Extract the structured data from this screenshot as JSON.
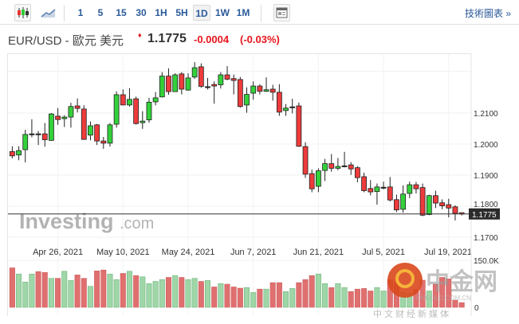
{
  "toolbar": {
    "chart_type_icons": [
      "candlestick-icon",
      "line-chart-icon"
    ],
    "intervals": [
      "1",
      "5",
      "15",
      "30",
      "1H",
      "5H",
      "1D",
      "1W",
      "1M"
    ],
    "active_interval": "1D",
    "news_icon": "news-icon",
    "tech_chart_link": "技術圖表 »"
  },
  "header": {
    "symbol": "EUR/USD - 歐元 美元",
    "last": "1.1775",
    "change": "-0.0004",
    "change_pct": "(-0.03%)",
    "direction_icon": "arrow-down-icon"
  },
  "colors": {
    "up": "#33d13a",
    "down": "#ee3b3b",
    "vol_up": "#9fd6a8",
    "vol_down": "#e07070",
    "link": "#2a5a9a",
    "neg": "#e8141b"
  },
  "watermarks": {
    "investing": "Investing.com",
    "cngold_cn": "中金网",
    "cngold_url": "CNGOLD.COM.CN",
    "cngold_tag": "中文财经新媒体"
  },
  "chart_data": {
    "type": "candlestick",
    "title": "EUR/USD",
    "interval": "1D",
    "y_ticks": [
      "1.2100",
      "1.2000",
      "1.1900",
      "1.1800",
      "1.1700"
    ],
    "y_tick_values": [
      1.21,
      1.2,
      1.19,
      1.18,
      1.17
    ],
    "last_price_label": "1.1775",
    "last_price": 1.1775,
    "x_labels": [
      {
        "label": "Apr 26, 2021",
        "index": 7
      },
      {
        "label": "May 10, 2021",
        "index": 17
      },
      {
        "label": "May 24, 2021",
        "index": 27
      },
      {
        "label": "Jun 7, 2021",
        "index": 37
      },
      {
        "label": "Jun 21, 2021",
        "index": 47
      },
      {
        "label": "Jul 5, 2021",
        "index": 57
      },
      {
        "label": "Jul 19, 2021",
        "index": 67
      }
    ],
    "volume_ticks": [
      "150.0K",
      "0"
    ],
    "volume_max": 150,
    "ohlc": [
      [
        1.1976,
        1.1993,
        1.1954,
        1.1962
      ],
      [
        1.1965,
        1.1993,
        1.1948,
        1.1979
      ],
      [
        1.1982,
        1.2046,
        1.1941,
        1.2031
      ],
      [
        1.2031,
        1.208,
        1.2022,
        1.2033
      ],
      [
        1.2033,
        1.2042,
        1.1997,
        1.2032
      ],
      [
        1.2033,
        1.2068,
        1.1992,
        1.2014
      ],
      [
        1.2012,
        1.21,
        1.201,
        1.2097
      ],
      [
        1.209,
        1.2116,
        1.2062,
        1.2079
      ],
      [
        1.2082,
        1.2093,
        1.2055,
        1.2087
      ],
      [
        1.2087,
        1.2133,
        1.2053,
        1.2121
      ],
      [
        1.2123,
        1.2147,
        1.2102,
        1.2115
      ],
      [
        1.2113,
        1.2125,
        1.2014,
        1.2015
      ],
      [
        1.2029,
        1.2073,
        1.2012,
        1.2059
      ],
      [
        1.2062,
        1.2065,
        1.1997,
        1.201
      ],
      [
        1.201,
        1.2023,
        1.1985,
        1.2003
      ],
      [
        1.2003,
        1.2068,
        1.1992,
        1.2062
      ],
      [
        1.2064,
        1.217,
        1.2053,
        1.2159
      ],
      [
        1.2159,
        1.2176,
        1.2125,
        1.2126
      ],
      [
        1.2126,
        1.218,
        1.2121,
        1.2144
      ],
      [
        1.2146,
        1.2153,
        1.2063,
        1.2066
      ],
      [
        1.2069,
        1.2106,
        1.2049,
        1.2074
      ],
      [
        1.2078,
        1.2149,
        1.2069,
        1.2135
      ],
      [
        1.2136,
        1.2168,
        1.2125,
        1.2149
      ],
      [
        1.2152,
        1.2232,
        1.215,
        1.2219
      ],
      [
        1.2219,
        1.2244,
        1.2159,
        1.2169
      ],
      [
        1.2169,
        1.2228,
        1.2168,
        1.2223
      ],
      [
        1.2226,
        1.2232,
        1.216,
        1.2177
      ],
      [
        1.2174,
        1.2228,
        1.2172,
        1.2213
      ],
      [
        1.2216,
        1.2264,
        1.221,
        1.2246
      ],
      [
        1.2249,
        1.226,
        1.2181,
        1.2186
      ],
      [
        1.2184,
        1.2213,
        1.2176,
        1.2185
      ],
      [
        1.2192,
        1.2202,
        1.213,
        1.2187
      ],
      [
        1.2191,
        1.2232,
        1.2179,
        1.2223
      ],
      [
        1.2223,
        1.2251,
        1.2206,
        1.2209
      ],
      [
        1.2211,
        1.2224,
        1.216,
        1.2205
      ],
      [
        1.2208,
        1.2216,
        1.2117,
        1.2121
      ],
      [
        1.2126,
        1.2183,
        1.2101,
        1.216
      ],
      [
        1.2164,
        1.2202,
        1.2143,
        1.2187
      ],
      [
        1.2187,
        1.2193,
        1.216,
        1.217
      ],
      [
        1.217,
        1.2215,
        1.2168,
        1.2175
      ],
      [
        1.2177,
        1.2191,
        1.214,
        1.2167
      ],
      [
        1.2167,
        1.2193,
        1.2091,
        1.2103
      ],
      [
        1.2108,
        1.2129,
        1.2091,
        1.2116
      ],
      [
        1.2119,
        1.2146,
        1.2099,
        1.212
      ],
      [
        1.2123,
        1.2134,
        1.1991,
        1.1993
      ],
      [
        1.1992,
        1.2006,
        1.1891,
        1.1903
      ],
      [
        1.1905,
        1.1918,
        1.1845,
        1.1856
      ],
      [
        1.1864,
        1.1922,
        1.1845,
        1.1914
      ],
      [
        1.1915,
        1.1952,
        1.1881,
        1.1937
      ],
      [
        1.1937,
        1.1968,
        1.1911,
        1.1922
      ],
      [
        1.1922,
        1.1955,
        1.1916,
        1.1928
      ],
      [
        1.1929,
        1.1975,
        1.1925,
        1.193
      ],
      [
        1.1933,
        1.1942,
        1.1901,
        1.192
      ],
      [
        1.1924,
        1.1929,
        1.1877,
        1.1892
      ],
      [
        1.1895,
        1.1908,
        1.1845,
        1.185
      ],
      [
        1.1857,
        1.1884,
        1.1835,
        1.1846
      ],
      [
        1.1847,
        1.1873,
        1.1805,
        1.1862
      ],
      [
        1.186,
        1.1879,
        1.1854,
        1.1861
      ],
      [
        1.1862,
        1.1894,
        1.1815,
        1.182
      ],
      [
        1.1821,
        1.1837,
        1.1781,
        1.1788
      ],
      [
        1.179,
        1.1867,
        1.1779,
        1.1839
      ],
      [
        1.1841,
        1.1879,
        1.1826,
        1.1869
      ],
      [
        1.1869,
        1.1878,
        1.1841,
        1.1856
      ],
      [
        1.186,
        1.1873,
        1.1768,
        1.1771
      ],
      [
        1.1773,
        1.1837,
        1.1771,
        1.1834
      ],
      [
        1.1834,
        1.185,
        1.1794,
        1.181
      ],
      [
        1.1811,
        1.1822,
        1.179,
        1.1801
      ],
      [
        1.1805,
        1.1824,
        1.1764,
        1.1794
      ],
      [
        1.1798,
        1.1803,
        1.1754,
        1.1777
      ],
      [
        1.1779,
        1.178,
        1.177,
        1.1775
      ]
    ],
    "volume_k": [
      128,
      108,
      82,
      108,
      116,
      113,
      94,
      94,
      117,
      87,
      105,
      94,
      68,
      118,
      121,
      108,
      90,
      110,
      117,
      103,
      99,
      77,
      84,
      90,
      97,
      103,
      97,
      90,
      94,
      84,
      87,
      66,
      77,
      75,
      66,
      62,
      64,
      48,
      59,
      59,
      80,
      80,
      51,
      61,
      80,
      90,
      103,
      108,
      77,
      64,
      77,
      64,
      51,
      59,
      61,
      53,
      64,
      53,
      90,
      84,
      49,
      45,
      58,
      88,
      53,
      75,
      97,
      92,
      23,
      15
    ]
  }
}
